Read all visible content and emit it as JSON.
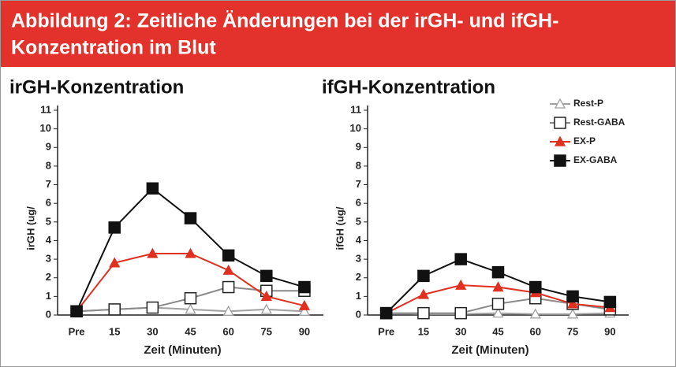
{
  "header": {
    "title": [
      "Abbildung 2: Zeitliche Änderungen bei der irGH- und ifGH-",
      "Konzentration im Blut"
    ]
  },
  "chart_data": [
    {
      "type": "line",
      "title": "irGH-Konzentration",
      "y_label": "irGH (ug/",
      "x_label": "Zeit (Minuten)",
      "categories": [
        "Pre",
        "15",
        "30",
        "45",
        "60",
        "75",
        "90"
      ],
      "ylim": [
        0,
        11
      ],
      "yticks": [
        0,
        1,
        2,
        3,
        4,
        5,
        6,
        7,
        8,
        9,
        10,
        11
      ],
      "series": [
        {
          "color": "#a0a0a0",
          "marker": "triangle-open",
          "values": [
            0.2,
            0.3,
            0.4,
            0.3,
            0.2,
            0.3,
            0.2
          ]
        },
        {
          "color": "#8a8a8a",
          "marker": "square-open",
          "values": [
            0.2,
            0.3,
            0.4,
            0.9,
            1.5,
            1.3,
            1.3
          ]
        },
        {
          "color": "#e03020",
          "marker": "triangle",
          "values": [
            0.2,
            2.8,
            3.3,
            3.3,
            2.4,
            1.0,
            0.5
          ]
        },
        {
          "color": "#111111",
          "marker": "square",
          "values": [
            0.2,
            4.7,
            6.8,
            5.2,
            3.2,
            2.1,
            1.5
          ]
        }
      ]
    },
    {
      "type": "line",
      "title": "ifGH-Konzentration",
      "y_label": "ifGH (ug/",
      "x_label": "Zeit (Minuten)",
      "categories": [
        "Pre",
        "15",
        "30",
        "45",
        "60",
        "75",
        "90"
      ],
      "ylim": [
        0,
        11
      ],
      "yticks": [
        0,
        1,
        2,
        3,
        4,
        5,
        6,
        7,
        8,
        9,
        10,
        11
      ],
      "legend": "upper right",
      "series": [
        {
          "name": "Rest-P",
          "color": "#a0a0a0",
          "marker": "triangle-open",
          "values": [
            0.1,
            0.05,
            0.05,
            0.1,
            0.05,
            0.05,
            0.1
          ]
        },
        {
          "name": "Rest-GABA",
          "color": "#8a8a8a",
          "marker": "square-open",
          "values": [
            0.1,
            0.1,
            0.1,
            0.6,
            0.9,
            0.6,
            0.3
          ]
        },
        {
          "name": "EX-P",
          "color": "#e03020",
          "marker": "triangle",
          "values": [
            0.1,
            1.1,
            1.6,
            1.5,
            1.2,
            0.6,
            0.4
          ]
        },
        {
          "name": "EX-GABA",
          "color": "#111111",
          "marker": "square",
          "values": [
            0.1,
            2.1,
            3.0,
            2.3,
            1.5,
            1.0,
            0.7
          ]
        }
      ]
    }
  ]
}
